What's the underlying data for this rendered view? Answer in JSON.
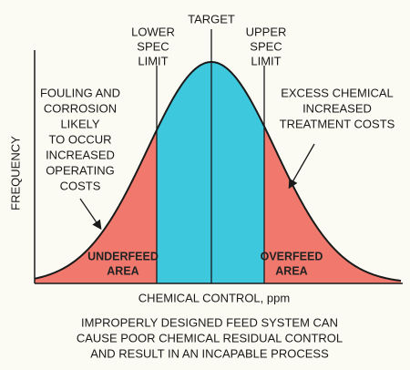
{
  "diagram": {
    "target_label": "TARGET",
    "lower_spec_label": [
      "LOWER",
      "SPEC",
      "LIMIT"
    ],
    "upper_spec_label": [
      "UPPER",
      "SPEC",
      "LIMIT"
    ],
    "left_note": [
      "FOULING AND",
      "CORROSION",
      "LIKELY",
      "TO OCCUR",
      "INCREASED",
      "OPERATING",
      "COSTS"
    ],
    "right_note": [
      "EXCESS CHEMICAL",
      "INCREASED",
      "TREATMENT COSTS"
    ],
    "underfeed_label": [
      "UNDERFEED",
      "AREA"
    ],
    "overfeed_label": [
      "OVERFEED",
      "AREA"
    ],
    "y_axis_label": "FREQUENCY",
    "x_axis_label": "CHEMICAL CONTROL, ppm",
    "caption": [
      "IMPROPERLY DESIGNED FEED SYSTEM CAN",
      "CAUSE POOR CHEMICAL RESIDUAL CONTROL",
      "AND RESULT IN AN INCAPABLE PROCESS"
    ]
  }
}
